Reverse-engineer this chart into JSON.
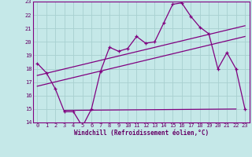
{
  "title": "",
  "xlabel": "Windchill (Refroidissement éolien,°C)",
  "bg_color": "#c5e8e8",
  "grid_color": "#a8d0d0",
  "line_color": "#800080",
  "xlim": [
    -0.5,
    23.5
  ],
  "ylim": [
    14,
    23
  ],
  "yticks": [
    14,
    15,
    16,
    17,
    18,
    19,
    20,
    21,
    22,
    23
  ],
  "xticks": [
    0,
    1,
    2,
    3,
    4,
    5,
    6,
    7,
    8,
    9,
    10,
    11,
    12,
    13,
    14,
    15,
    16,
    17,
    18,
    19,
    20,
    21,
    22,
    23
  ],
  "series1_x": [
    0,
    1,
    2,
    3,
    4,
    5,
    6,
    7,
    8,
    9,
    10,
    11,
    12,
    13,
    14,
    15,
    16,
    17,
    18,
    19,
    20,
    21,
    22,
    23
  ],
  "series1_y": [
    18.4,
    17.7,
    16.5,
    14.8,
    14.8,
    13.7,
    15.0,
    17.8,
    19.6,
    19.3,
    19.5,
    20.4,
    19.9,
    20.0,
    21.4,
    22.8,
    22.9,
    21.9,
    21.1,
    20.6,
    18.0,
    19.2,
    18.0,
    15.0
  ],
  "series2_x": [
    0,
    23
  ],
  "series2_y": [
    17.5,
    21.2
  ],
  "series3_x": [
    0,
    23
  ],
  "series3_y": [
    16.7,
    20.4
  ],
  "series4_x": [
    3,
    22
  ],
  "series4_y": [
    14.9,
    15.0
  ]
}
